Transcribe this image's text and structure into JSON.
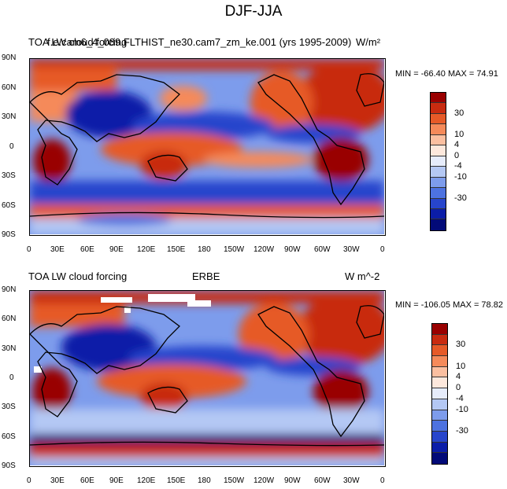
{
  "figure": {
    "title": "DJF-JJA"
  },
  "lon_labels": [
    "0",
    "30E",
    "60E",
    "90E",
    "120E",
    "150E",
    "180",
    "150W",
    "120W",
    "90W",
    "60W",
    "30W",
    "0"
  ],
  "lat_labels": [
    "90N",
    "60N",
    "30N",
    "0",
    "30S",
    "60S",
    "90S"
  ],
  "colorbar": {
    "colors": [
      "#990000",
      "#c82b10",
      "#e65a28",
      "#f58a5a",
      "#fbbfa0",
      "#fde8dc",
      "#e6ecfb",
      "#b4c8f4",
      "#7d9cec",
      "#4d72e0",
      "#2745cc",
      "#0b1da8",
      "#020a78"
    ],
    "labels": [
      "30",
      "10",
      "4",
      "0",
      "-4",
      "-10",
      "-30"
    ]
  },
  "panels": [
    {
      "left_title": "TOA LW cloud forcing",
      "center_title": "f.e.cam6_4_089.FLTHIST_ne30.cam7_zm_ke.001 (yrs 1995-2009)",
      "right_title": "W/m²",
      "stats": "MIN = -66.40 MAX =  74.91"
    },
    {
      "left_title": "TOA LW cloud forcing",
      "center_title": "ERBE",
      "right_title": "W m^-2",
      "stats": "MIN = -106.05 MAX =  78.82"
    }
  ]
}
